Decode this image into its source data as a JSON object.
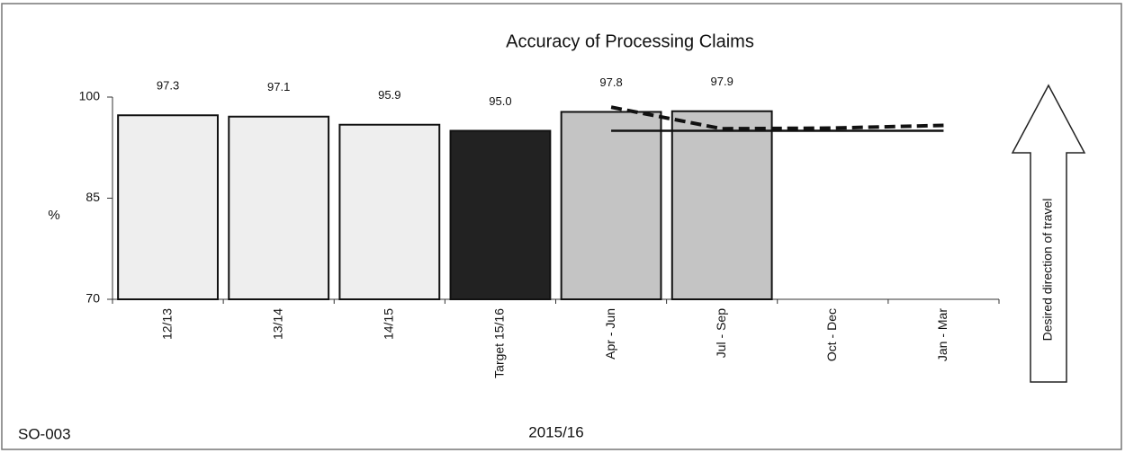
{
  "chart_data": {
    "type": "bar",
    "title": "Accuracy of Processing Claims",
    "categories": [
      "12/13",
      "13/14",
      "14/15",
      "Target 15/16",
      "Apr - Jun",
      "Jul - Sep",
      "Oct - Dec",
      "Jan - Mar"
    ],
    "values": [
      97.3,
      97.1,
      95.9,
      95.0,
      97.8,
      97.9,
      null,
      null
    ],
    "value_labels": [
      "97.3",
      "97.1",
      "95.9",
      "95.0",
      "97.8",
      "97.9",
      null,
      null
    ],
    "colors": [
      "#eeeeee",
      "#eeeeee",
      "#eeeeee",
      "#222222",
      "#c4c4c4",
      "#c4c4c4",
      "#c4c4c4",
      "#c4c4c4"
    ],
    "lines": [
      {
        "color": "#111111",
        "dashed": true,
        "values": [
          null,
          null,
          null,
          null,
          98.5,
          95.3,
          95.4,
          95.8
        ]
      },
      {
        "color": "#111111",
        "dashed": false,
        "values": [
          null,
          null,
          null,
          null,
          95.0,
          95.0,
          95.0,
          95.0
        ]
      }
    ],
    "ylim": [
      70,
      100
    ],
    "yticks": [
      70,
      85,
      100
    ],
    "y_label": "%",
    "x_label": "2015/16",
    "code": "SO-003",
    "arrow_text": "Desired direction of travel"
  }
}
